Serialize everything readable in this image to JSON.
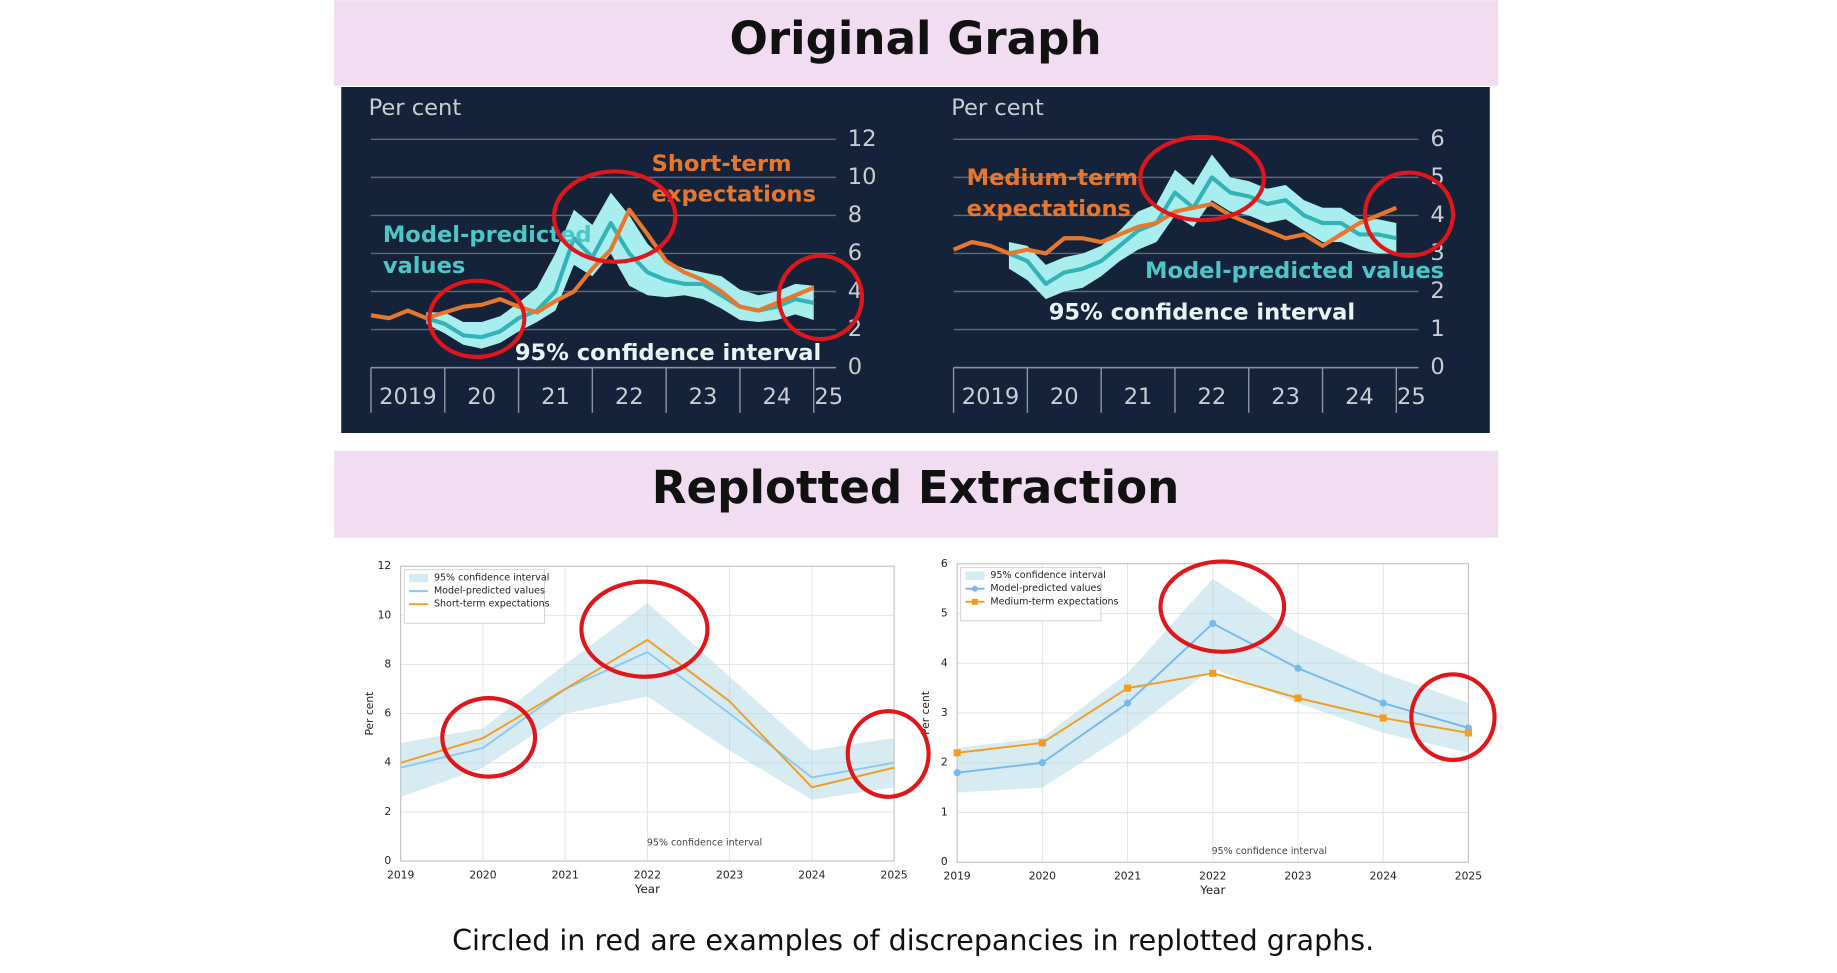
{
  "headings": [
    "Original Graph",
    "Replotted Extraction"
  ],
  "caption": "Circled in red are examples of discrepancies in replotted graphs.",
  "chart_data": [
    {
      "type": "line",
      "ylabel": "Per cent",
      "x": [
        2019,
        2019.25,
        2019.5,
        2019.75,
        2020,
        2020.25,
        2020.5,
        2020.75,
        2021,
        2021.25,
        2021.5,
        2021.75,
        2022,
        2022.25,
        2022.5,
        2022.75,
        2023,
        2023.25,
        2023.5,
        2023.75,
        2024,
        2024.25,
        2024.5,
        2024.75,
        2025
      ],
      "xlim": [
        2019,
        2025.3
      ],
      "ylim": [
        0,
        12
      ],
      "xticks": [
        2019,
        {
          "value": 2020,
          "label": "20"
        },
        {
          "value": 2021,
          "label": "21"
        },
        {
          "value": 2022,
          "label": "22"
        },
        {
          "value": 2023,
          "label": "23"
        },
        {
          "value": 2024,
          "label": "24"
        },
        {
          "value": 2025,
          "label": "25"
        }
      ],
      "yticks": [
        0,
        2,
        4,
        6,
        8,
        10,
        12
      ],
      "grid": true,
      "series": [
        {
          "color": "#a9eeee",
          "upper": [
            null,
            null,
            null,
            2.9,
            2.9,
            2.4,
            2.4,
            2.7,
            3.4,
            4.2,
            6.0,
            8.3,
            7.5,
            9.2,
            8.0,
            6.5,
            5.6,
            5.2,
            5.0,
            4.8,
            4.1,
            3.8,
            4.0,
            4.4,
            4.3
          ],
          "lower": [
            null,
            null,
            null,
            2.3,
            1.8,
            1.2,
            1.0,
            1.3,
            1.9,
            2.4,
            3.0,
            5.4,
            4.8,
            6.0,
            4.3,
            3.8,
            3.7,
            3.8,
            3.6,
            3.1,
            2.5,
            2.4,
            2.5,
            2.8,
            2.5
          ]
        },
        {
          "color": "#34b3b6",
          "values": [
            null,
            null,
            null,
            2.6,
            2.3,
            1.7,
            1.6,
            1.9,
            2.6,
            3.0,
            4.0,
            6.8,
            5.8,
            7.6,
            6.0,
            5.0,
            4.6,
            4.4,
            4.4,
            3.8,
            3.2,
            3.0,
            3.2,
            3.6,
            3.4
          ]
        },
        {
          "color": "#e8772e",
          "values": [
            2.75,
            2.6,
            3.0,
            2.6,
            2.9,
            3.2,
            3.3,
            3.6,
            3.2,
            2.9,
            3.5,
            4.0,
            5.2,
            6.2,
            8.3,
            7.0,
            5.6,
            5.0,
            4.6,
            4.0,
            3.2,
            3.0,
            3.4,
            3.8,
            4.2
          ]
        }
      ],
      "annotations": [
        {
          "lines": [
            "Short-term",
            "expectations"
          ],
          "color": "#e8772e"
        },
        {
          "lines": [
            "Model-predicted",
            "values"
          ],
          "color": "#4cc6c6"
        },
        {
          "lines": [
            "95% confidence interval"
          ],
          "color": "#e6f6f6"
        }
      ]
    },
    {
      "type": "line",
      "ylabel": "Per cent",
      "x": [
        2019,
        2019.25,
        2019.5,
        2019.75,
        2020,
        2020.25,
        2020.5,
        2020.75,
        2021,
        2021.25,
        2021.5,
        2021.75,
        2022,
        2022.25,
        2022.5,
        2022.75,
        2023,
        2023.25,
        2023.5,
        2023.75,
        2024,
        2024.25,
        2024.5,
        2024.75,
        2025
      ],
      "xlim": [
        2019,
        2025.3
      ],
      "ylim": [
        0,
        6
      ],
      "xticks": [
        2019,
        {
          "value": 2020,
          "label": "20"
        },
        {
          "value": 2021,
          "label": "21"
        },
        {
          "value": 2022,
          "label": "22"
        },
        {
          "value": 2023,
          "label": "23"
        },
        {
          "value": 2024,
          "label": "24"
        },
        {
          "value": 2025,
          "label": "25"
        }
      ],
      "yticks": [
        0,
        1,
        2,
        3,
        4,
        5,
        6
      ],
      "grid": true,
      "series": [
        {
          "color": "#a9eeee",
          "upper": [
            null,
            null,
            null,
            3.3,
            3.2,
            2.7,
            2.9,
            3.0,
            3.2,
            3.6,
            4.1,
            4.3,
            5.2,
            4.8,
            5.6,
            5.0,
            4.9,
            4.7,
            4.8,
            4.4,
            4.2,
            4.2,
            3.9,
            3.9,
            3.8
          ],
          "lower": [
            null,
            null,
            null,
            2.6,
            2.3,
            1.8,
            2.0,
            2.1,
            2.4,
            2.8,
            3.1,
            3.3,
            4.0,
            3.7,
            4.4,
            4.1,
            4.0,
            3.8,
            3.9,
            3.6,
            3.3,
            3.3,
            3.1,
            3.0,
            3.0
          ]
        },
        {
          "color": "#34b3b6",
          "values": [
            null,
            null,
            null,
            3.0,
            2.8,
            2.2,
            2.5,
            2.6,
            2.8,
            3.2,
            3.6,
            3.8,
            4.6,
            4.2,
            5.0,
            4.6,
            4.5,
            4.3,
            4.4,
            4.0,
            3.8,
            3.8,
            3.5,
            3.5,
            3.4
          ]
        },
        {
          "color": "#e8772e",
          "values": [
            3.1,
            3.3,
            3.2,
            3.0,
            3.1,
            3.0,
            3.4,
            3.4,
            3.3,
            3.5,
            3.7,
            3.8,
            4.1,
            4.2,
            4.3,
            4.0,
            3.8,
            3.6,
            3.4,
            3.5,
            3.2,
            3.5,
            3.8,
            4.0,
            4.2
          ]
        }
      ],
      "annotations": [
        {
          "lines": [
            "Medium-term",
            "expectations"
          ],
          "color": "#e8772e"
        },
        {
          "lines": [
            "Model-predicted values"
          ],
          "color": "#4cc6c6"
        },
        {
          "lines": [
            "95% confidence interval"
          ],
          "color": "#e6f6f6"
        }
      ]
    },
    {
      "type": "line",
      "xlabel": "Year",
      "ylabel": "Per cent",
      "x": [
        2019,
        2020,
        2021,
        2022,
        2023,
        2024,
        2025
      ],
      "xlim": [
        2019,
        2025
      ],
      "ylim": [
        0,
        12
      ],
      "xticks": [
        2019,
        2020,
        2021,
        2022,
        2023,
        2024,
        2025
      ],
      "yticks": [
        0,
        2,
        4,
        6,
        8,
        10,
        12
      ],
      "grid": true,
      "legend": "upper left",
      "series": [
        {
          "name": "95% confidence interval",
          "color": "#add8e6",
          "upper": [
            4.8,
            5.4,
            8.0,
            10.5,
            7.5,
            4.5,
            5.0
          ],
          "lower": [
            2.6,
            3.8,
            6.0,
            6.7,
            4.5,
            2.5,
            3.0
          ]
        },
        {
          "name": "Model-predicted values",
          "color": "#8ec9ee",
          "values": [
            3.8,
            4.6,
            7.0,
            8.5,
            6.0,
            3.4,
            4.0
          ]
        },
        {
          "name": "Short-term expectations",
          "color": "#f39c1f",
          "values": [
            4.0,
            5.0,
            7.0,
            9.0,
            6.5,
            3.0,
            3.8
          ]
        }
      ],
      "annotations": [
        {
          "lines": [
            "95% confidence interval"
          ],
          "color": "#444444"
        }
      ]
    },
    {
      "type": "line",
      "xlabel": "Year",
      "ylabel": "Per cent",
      "x": [
        2019,
        2020,
        2021,
        2022,
        2023,
        2024,
        2025
      ],
      "xlim": [
        2019,
        2025
      ],
      "ylim": [
        0,
        6
      ],
      "xticks": [
        2019,
        2020,
        2021,
        2022,
        2023,
        2024,
        2025
      ],
      "yticks": [
        0,
        1,
        2,
        3,
        4,
        5,
        6
      ],
      "grid": true,
      "legend": "upper left",
      "series": [
        {
          "name": "95% confidence interval",
          "color": "#add8e6",
          "upper": [
            2.3,
            2.5,
            3.8,
            5.7,
            4.6,
            3.8,
            3.2
          ],
          "lower": [
            1.4,
            1.5,
            2.6,
            3.9,
            3.2,
            2.6,
            2.2
          ]
        },
        {
          "name": "Model-predicted values",
          "color": "#75b9ef",
          "marker": "circle",
          "values": [
            1.8,
            2.0,
            3.2,
            4.8,
            3.9,
            3.2,
            2.7
          ]
        },
        {
          "name": "Medium-term expectations",
          "color": "#f39c1f",
          "marker": "square",
          "values": [
            2.2,
            2.4,
            3.5,
            3.8,
            3.3,
            2.9,
            2.6
          ]
        }
      ],
      "annotations": [
        {
          "lines": [
            "95% confidence interval"
          ],
          "color": "#444444"
        }
      ]
    }
  ]
}
